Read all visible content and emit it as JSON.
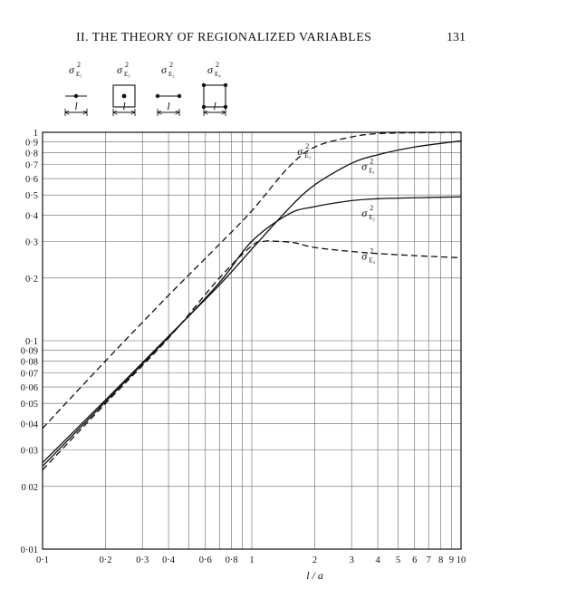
{
  "header": {
    "running_head": "II. THE THEORY OF REGIONALIZED VARIABLES",
    "page_number": "131"
  },
  "schematics": [
    {
      "symbol": "σ",
      "superscript": "2",
      "subscript": "E₁",
      "length_label": "l",
      "shape": "segment-midpoint"
    },
    {
      "symbol": "σ",
      "superscript": "2",
      "subscript": "E₃",
      "length_label": "l",
      "shape": "square-center"
    },
    {
      "symbol": "σ",
      "superscript": "2",
      "subscript": "E₂",
      "length_label": "l",
      "shape": "segment-ends"
    },
    {
      "symbol": "σ",
      "superscript": "2",
      "subscript": "E₄",
      "length_label": "l",
      "shape": "square-corners"
    }
  ],
  "chart_data": {
    "type": "line",
    "title": "",
    "xlabel": "l / a",
    "ylabel": "",
    "xscale": "log",
    "yscale": "log",
    "xlim": [
      0.1,
      10
    ],
    "ylim": [
      0.01,
      1.0
    ],
    "grid": true,
    "x_ticks": [
      {
        "value": 0.1,
        "label": "0·1"
      },
      {
        "value": 0.2,
        "label": "0·2"
      },
      {
        "value": 0.3,
        "label": "0·3"
      },
      {
        "value": 0.4,
        "label": "0·4"
      },
      {
        "value": 0.6,
        "label": "0·6"
      },
      {
        "value": 0.8,
        "label": "0·8"
      },
      {
        "value": 1,
        "label": "1"
      },
      {
        "value": 2,
        "label": "2"
      },
      {
        "value": 3,
        "label": "3"
      },
      {
        "value": 4,
        "label": "4"
      },
      {
        "value": 5,
        "label": "5"
      },
      {
        "value": 6,
        "label": "6"
      },
      {
        "value": 7,
        "label": "7"
      },
      {
        "value": 8,
        "label": "8"
      },
      {
        "value": 9,
        "label": "9"
      },
      {
        "value": 10,
        "label": "10"
      }
    ],
    "x_minor": [
      0.5,
      0.7,
      0.9
    ],
    "y_ticks": [
      {
        "value": 0.01,
        "label": "0·01"
      },
      {
        "value": 0.02,
        "label": "0 02"
      },
      {
        "value": 0.03,
        "label": "0·03"
      },
      {
        "value": 0.04,
        "label": "0·04"
      },
      {
        "value": 0.05,
        "label": "0·05"
      },
      {
        "value": 0.06,
        "label": "0·06"
      },
      {
        "value": 0.07,
        "label": "0·07"
      },
      {
        "value": 0.08,
        "label": "0·08"
      },
      {
        "value": 0.09,
        "label": "0·09"
      },
      {
        "value": 0.1,
        "label": "0·1"
      },
      {
        "value": 0.2,
        "label": "0·2"
      },
      {
        "value": 0.3,
        "label": "0·3"
      },
      {
        "value": 0.4,
        "label": "0·4"
      },
      {
        "value": 0.5,
        "label": "0·5"
      },
      {
        "value": 0.6,
        "label": "0·6"
      },
      {
        "value": 0.7,
        "label": "0·7"
      },
      {
        "value": 0.8,
        "label": "0·8"
      },
      {
        "value": 0.9,
        "label": "0·9"
      },
      {
        "value": 1.0,
        "label": "1"
      }
    ],
    "series": [
      {
        "name": "σ²E₃",
        "subscript": "E₃",
        "style": "dashed",
        "label_at": {
          "x": 1.65,
          "y": 0.78
        },
        "x": [
          0.1,
          0.2,
          0.4,
          0.7,
          1.0,
          1.5,
          2,
          3,
          4,
          6,
          10
        ],
        "y": [
          0.038,
          0.08,
          0.165,
          0.29,
          0.42,
          0.68,
          0.85,
          0.95,
          0.985,
          0.995,
          1.0
        ]
      },
      {
        "name": "σ²E₁",
        "subscript": "E₁",
        "style": "solid",
        "label_at": {
          "x": 3.35,
          "y": 0.66
        },
        "x": [
          0.1,
          0.2,
          0.4,
          0.7,
          1.0,
          1.5,
          2,
          3,
          4,
          6,
          10
        ],
        "y": [
          0.026,
          0.052,
          0.105,
          0.185,
          0.275,
          0.43,
          0.56,
          0.71,
          0.78,
          0.85,
          0.91
        ]
      },
      {
        "name": "σ²E₂",
        "subscript": "E₂",
        "style": "solid",
        "label_at": {
          "x": 3.35,
          "y": 0.395
        },
        "x": [
          0.1,
          0.2,
          0.4,
          0.7,
          1.0,
          1.5,
          2,
          3,
          4,
          6,
          10
        ],
        "y": [
          0.025,
          0.051,
          0.104,
          0.19,
          0.3,
          0.405,
          0.44,
          0.47,
          0.48,
          0.485,
          0.49
        ]
      },
      {
        "name": "σ²E₄",
        "subscript": "E₄",
        "style": "dashed",
        "label_at": {
          "x": 3.35,
          "y": 0.245
        },
        "x": [
          0.1,
          0.2,
          0.4,
          0.7,
          1.0,
          1.15,
          1.3,
          1.6,
          2,
          3,
          4,
          6,
          10
        ],
        "y": [
          0.024,
          0.05,
          0.103,
          0.2,
          0.285,
          0.3,
          0.3,
          0.295,
          0.28,
          0.268,
          0.262,
          0.256,
          0.25
        ]
      }
    ]
  }
}
